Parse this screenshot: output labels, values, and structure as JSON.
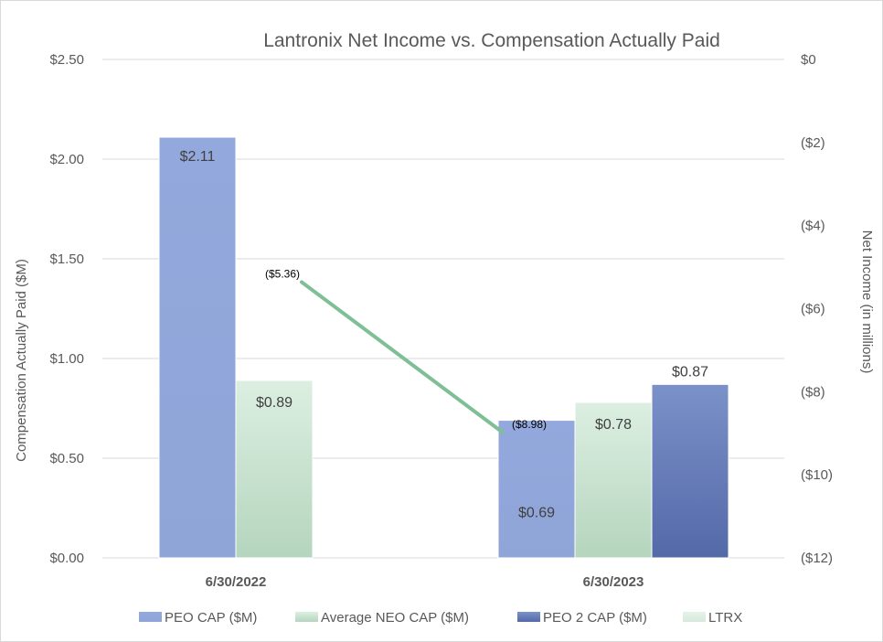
{
  "chart_data": {
    "type": "bar",
    "title": "Lantronix Net Income vs. Compensation Actually Paid",
    "categories": [
      "6/30/2022",
      "6/30/2023"
    ],
    "ylabel": "Compensation Actually Paid ($M)",
    "y2label": "Net Income (in millions)",
    "ylim": [
      0,
      2.5
    ],
    "y2lim": [
      -12,
      0
    ],
    "yticks": [
      "$0.00",
      "$0.50",
      "$1.00",
      "$1.50",
      "$2.00",
      "$2.50"
    ],
    "y2ticks": [
      "($12)",
      "($10)",
      "($8)",
      "($6)",
      "($4)",
      "($2)",
      "$0"
    ],
    "grid": true,
    "legend_position": "bottom",
    "series": [
      {
        "name": "PEO CAP ($M)",
        "type": "bar",
        "color": "#8faadc",
        "values": [
          2.11,
          0.69
        ],
        "labels": [
          "$2.11",
          "$0.69"
        ]
      },
      {
        "name": "Average NEO CAP ($M)",
        "type": "bar",
        "color": "#c5e0cc",
        "values": [
          0.89,
          0.78
        ],
        "labels": [
          "$0.89",
          "$0.78"
        ]
      },
      {
        "name": "PEO 2 CAP ($M)",
        "type": "bar",
        "color": "#6f86bd",
        "values": [
          null,
          0.87
        ],
        "labels": [
          "",
          "$0.87"
        ]
      },
      {
        "name": "LTRX",
        "type": "line",
        "axis": "right",
        "color": "#7fbf95",
        "values": [
          -5.36,
          -8.98
        ],
        "labels": [
          "($5.36)",
          "($8.98)"
        ]
      }
    ]
  }
}
